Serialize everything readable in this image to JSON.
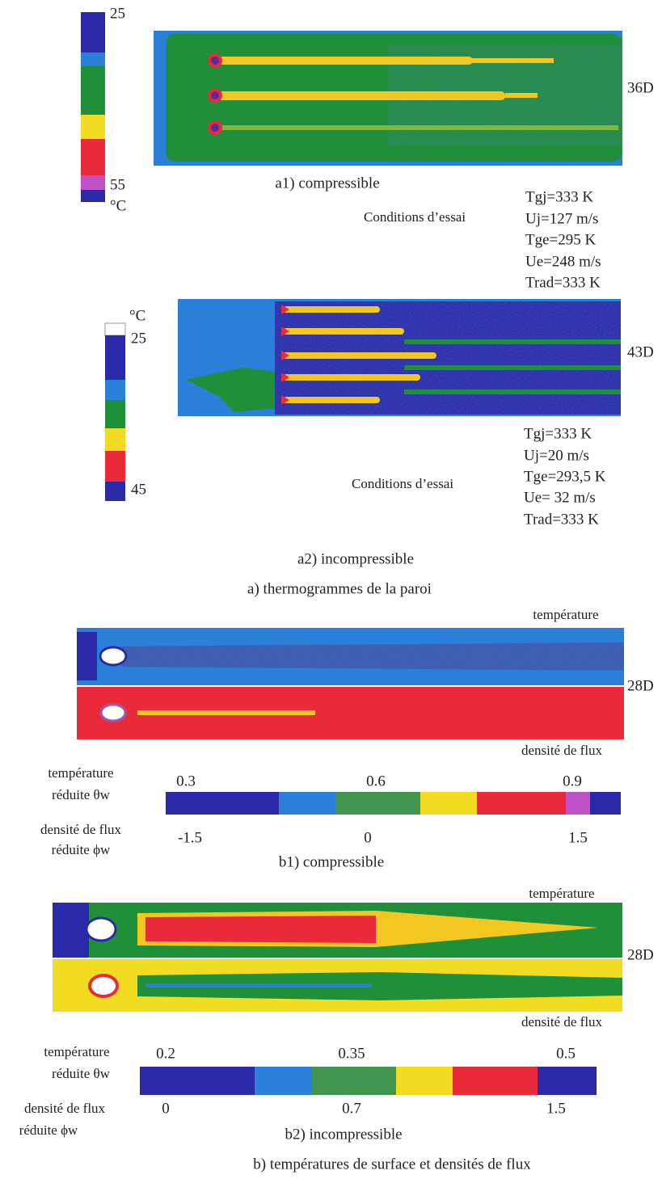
{
  "figure_a": {
    "a1": {
      "scale_labels": [
        "25",
        "55",
        "°C"
      ],
      "distance": "36D",
      "caption": "a1) compressible",
      "conditions_title": "Conditions d’essai",
      "conditions": [
        "Tgj=333 K",
        "Uj=127 m/s",
        "Tge=295 K",
        "Ue=248 m/s",
        "Trad=333 K"
      ]
    },
    "a2": {
      "scale_labels": [
        "°C",
        "25",
        "45"
      ],
      "distance": "43D",
      "caption": "a2) incompressible",
      "conditions_title": "Conditions d’essai",
      "conditions": [
        "Tgj=333 K",
        "Uj=20 m/s",
        "Tge=293,5 K",
        "Ue= 32 m/s",
        "Trad=333 K"
      ]
    },
    "caption": "a) thermogrammes de la paroi"
  },
  "figure_b": {
    "b1": {
      "top_label": "température",
      "distance": "28D",
      "bottom_label": "densité de flux",
      "theta_title": [
        "température",
        "réduite θw"
      ],
      "theta_ticks": [
        "0.3",
        "0.6",
        "0.9"
      ],
      "phi_title": [
        "densité de flux",
        "réduite ϕw"
      ],
      "phi_ticks": [
        "-1.5",
        "0",
        "1.5"
      ],
      "caption": "b1) compressible"
    },
    "b2": {
      "top_label": "température",
      "distance": "28D",
      "bottom_label": "densité de flux",
      "theta_title": [
        "température",
        "réduite θw"
      ],
      "theta_ticks": [
        "0.2",
        "0.35",
        "0.5"
      ],
      "phi_title": [
        "densité de flux",
        "réduite ϕw"
      ],
      "phi_ticks": [
        "0",
        "0.7",
        "1.5"
      ],
      "caption": "b2) incompressible"
    },
    "caption": "b) températures de surface et densités de flux"
  }
}
